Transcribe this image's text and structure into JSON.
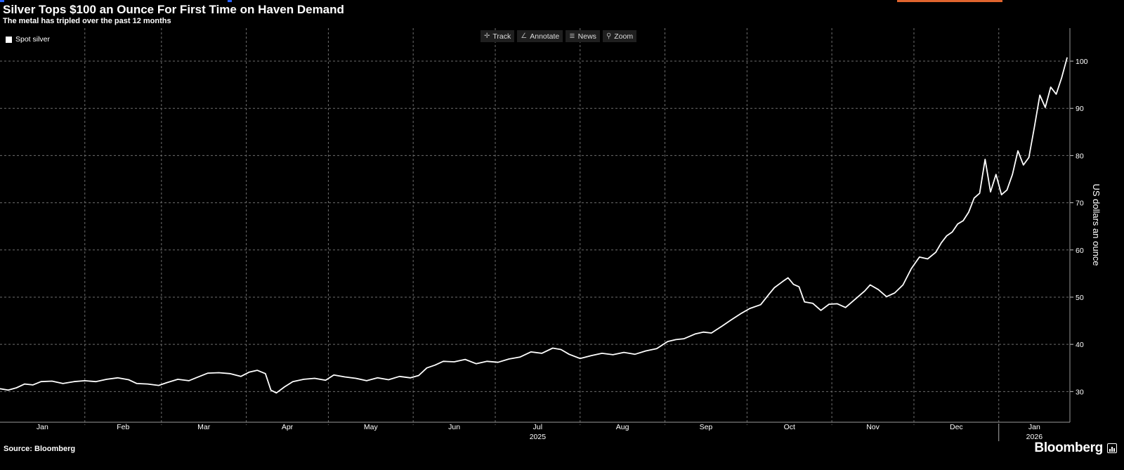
{
  "header": {
    "title": "Silver Tops $100 an Ounce For First Time on Haven Demand",
    "subtitle": "The metal has tripled over the past 12 months"
  },
  "toolbar": {
    "items": [
      {
        "label": "Track",
        "icon": "crosshair-icon"
      },
      {
        "label": "Annotate",
        "icon": "pencil-icon"
      },
      {
        "label": "News",
        "icon": "list-icon"
      },
      {
        "label": "Zoom",
        "icon": "magnifier-icon"
      }
    ]
  },
  "legend": {
    "label": "Spot silver",
    "color": "#ffffff"
  },
  "footer": {
    "source": "Source: Bloomberg",
    "brand": "Bloomberg"
  },
  "colors": {
    "background": "#000000",
    "line": "#ffffff",
    "grid": "#6e6e6e"
  },
  "chart_data": {
    "type": "line",
    "ylabel": "US dollars an ounce",
    "ylim": [
      23.5,
      107
    ],
    "yticks": [
      30,
      40,
      50,
      60,
      70,
      80,
      90,
      100
    ],
    "xlim": [
      "2025-01-01",
      "2026-01-27"
    ],
    "x_month_labels": [
      {
        "label": "Jan",
        "date": "2025-01-01"
      },
      {
        "label": "Feb",
        "date": "2025-02-01"
      },
      {
        "label": "Mar",
        "date": "2025-03-01"
      },
      {
        "label": "Apr",
        "date": "2025-04-01"
      },
      {
        "label": "May",
        "date": "2025-05-01"
      },
      {
        "label": "Jun",
        "date": "2025-06-01"
      },
      {
        "label": "Jul",
        "date": "2025-07-01"
      },
      {
        "label": "Aug",
        "date": "2025-08-01"
      },
      {
        "label": "Sep",
        "date": "2025-09-01"
      },
      {
        "label": "Oct",
        "date": "2025-10-01"
      },
      {
        "label": "Nov",
        "date": "2025-11-01"
      },
      {
        "label": "Dec",
        "date": "2025-12-01"
      },
      {
        "label": "Jan",
        "date": "2026-01-01"
      }
    ],
    "x_year_labels": [
      {
        "label": "2025",
        "date": "2025-07-01"
      },
      {
        "label": "2026",
        "date": "2026-01-01"
      }
    ],
    "grid": true,
    "legend_position": "top-left",
    "series": [
      {
        "name": "Spot silver",
        "color": "#ffffff",
        "points": [
          [
            "2025-01-01",
            30.6
          ],
          [
            "2025-01-04",
            30.3
          ],
          [
            "2025-01-07",
            30.8
          ],
          [
            "2025-01-10",
            31.6
          ],
          [
            "2025-01-13",
            31.4
          ],
          [
            "2025-01-16",
            32.1
          ],
          [
            "2025-01-20",
            32.2
          ],
          [
            "2025-01-24",
            31.7
          ],
          [
            "2025-01-28",
            32.1
          ],
          [
            "2025-02-01",
            32.3
          ],
          [
            "2025-02-05",
            32.1
          ],
          [
            "2025-02-09",
            32.6
          ],
          [
            "2025-02-13",
            32.9
          ],
          [
            "2025-02-17",
            32.5
          ],
          [
            "2025-02-20",
            31.7
          ],
          [
            "2025-02-24",
            31.6
          ],
          [
            "2025-02-28",
            31.3
          ],
          [
            "2025-03-03",
            31.9
          ],
          [
            "2025-03-07",
            32.6
          ],
          [
            "2025-03-11",
            32.3
          ],
          [
            "2025-03-14",
            33.0
          ],
          [
            "2025-03-18",
            33.9
          ],
          [
            "2025-03-22",
            34.0
          ],
          [
            "2025-03-26",
            33.8
          ],
          [
            "2025-03-30",
            33.2
          ],
          [
            "2025-04-02",
            34.1
          ],
          [
            "2025-04-05",
            34.5
          ],
          [
            "2025-04-08",
            33.8
          ],
          [
            "2025-04-10",
            30.3
          ],
          [
            "2025-04-12",
            29.7
          ],
          [
            "2025-04-15",
            31.0
          ],
          [
            "2025-04-18",
            32.1
          ],
          [
            "2025-04-22",
            32.6
          ],
          [
            "2025-04-26",
            32.8
          ],
          [
            "2025-04-30",
            32.4
          ],
          [
            "2025-05-03",
            33.5
          ],
          [
            "2025-05-07",
            33.1
          ],
          [
            "2025-05-11",
            32.8
          ],
          [
            "2025-05-15",
            32.3
          ],
          [
            "2025-05-19",
            32.9
          ],
          [
            "2025-05-23",
            32.5
          ],
          [
            "2025-05-27",
            33.2
          ],
          [
            "2025-05-31",
            32.9
          ],
          [
            "2025-06-03",
            33.4
          ],
          [
            "2025-06-06",
            35.0
          ],
          [
            "2025-06-09",
            35.6
          ],
          [
            "2025-06-12",
            36.4
          ],
          [
            "2025-06-16",
            36.3
          ],
          [
            "2025-06-20",
            36.8
          ],
          [
            "2025-06-24",
            35.9
          ],
          [
            "2025-06-28",
            36.4
          ],
          [
            "2025-07-02",
            36.2
          ],
          [
            "2025-07-06",
            36.9
          ],
          [
            "2025-07-10",
            37.3
          ],
          [
            "2025-07-14",
            38.4
          ],
          [
            "2025-07-18",
            38.1
          ],
          [
            "2025-07-22",
            39.2
          ],
          [
            "2025-07-25",
            38.9
          ],
          [
            "2025-07-28",
            37.9
          ],
          [
            "2025-08-01",
            37.0
          ],
          [
            "2025-08-05",
            37.6
          ],
          [
            "2025-08-09",
            38.1
          ],
          [
            "2025-08-13",
            37.8
          ],
          [
            "2025-08-17",
            38.3
          ],
          [
            "2025-08-21",
            37.9
          ],
          [
            "2025-08-25",
            38.6
          ],
          [
            "2025-08-29",
            39.1
          ],
          [
            "2025-09-02",
            40.6
          ],
          [
            "2025-09-05",
            41.0
          ],
          [
            "2025-09-08",
            41.2
          ],
          [
            "2025-09-12",
            42.2
          ],
          [
            "2025-09-15",
            42.6
          ],
          [
            "2025-09-18",
            42.4
          ],
          [
            "2025-09-22",
            43.9
          ],
          [
            "2025-09-25",
            45.1
          ],
          [
            "2025-09-29",
            46.6
          ],
          [
            "2025-10-02",
            47.6
          ],
          [
            "2025-10-06",
            48.4
          ],
          [
            "2025-10-09",
            50.6
          ],
          [
            "2025-10-11",
            52.0
          ],
          [
            "2025-10-14",
            53.3
          ],
          [
            "2025-10-16",
            54.1
          ],
          [
            "2025-10-18",
            52.7
          ],
          [
            "2025-10-20",
            52.2
          ],
          [
            "2025-10-22",
            49.0
          ],
          [
            "2025-10-25",
            48.7
          ],
          [
            "2025-10-28",
            47.2
          ],
          [
            "2025-10-31",
            48.5
          ],
          [
            "2025-11-03",
            48.6
          ],
          [
            "2025-11-06",
            47.8
          ],
          [
            "2025-11-10",
            49.8
          ],
          [
            "2025-11-13",
            51.3
          ],
          [
            "2025-11-15",
            52.6
          ],
          [
            "2025-11-18",
            51.6
          ],
          [
            "2025-11-21",
            50.1
          ],
          [
            "2025-11-24",
            50.9
          ],
          [
            "2025-11-27",
            52.6
          ],
          [
            "2025-11-30",
            56.0
          ],
          [
            "2025-12-03",
            58.5
          ],
          [
            "2025-12-06",
            58.1
          ],
          [
            "2025-12-09",
            59.5
          ],
          [
            "2025-12-11",
            61.5
          ],
          [
            "2025-12-13",
            63.0
          ],
          [
            "2025-12-15",
            63.8
          ],
          [
            "2025-12-17",
            65.5
          ],
          [
            "2025-12-19",
            66.2
          ],
          [
            "2025-12-21",
            68.0
          ],
          [
            "2025-12-23",
            71.0
          ],
          [
            "2025-12-25",
            72.0
          ],
          [
            "2025-12-27",
            79.2
          ],
          [
            "2025-12-29",
            72.3
          ],
          [
            "2025-12-31",
            76.0
          ],
          [
            "2026-01-02",
            71.7
          ],
          [
            "2026-01-04",
            72.7
          ],
          [
            "2026-01-06",
            76.0
          ],
          [
            "2026-01-08",
            81.0
          ],
          [
            "2026-01-10",
            78.0
          ],
          [
            "2026-01-12",
            79.6
          ],
          [
            "2026-01-14",
            86.0
          ],
          [
            "2026-01-16",
            92.8
          ],
          [
            "2026-01-18",
            90.2
          ],
          [
            "2026-01-20",
            94.5
          ],
          [
            "2026-01-22",
            93.0
          ],
          [
            "2026-01-24",
            96.5
          ],
          [
            "2026-01-26",
            100.8
          ]
        ]
      }
    ]
  }
}
